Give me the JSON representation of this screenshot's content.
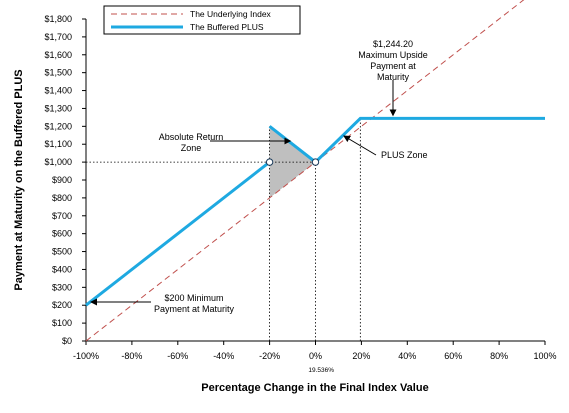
{
  "chart_data": {
    "type": "line",
    "xlabel": "Percentage Change in the Final Index Value",
    "ylabel": "Payment at Maturity on the Buffered PLUS",
    "xlim": [
      -100,
      100
    ],
    "ylim": [
      0,
      1800
    ],
    "x_ticks": [
      -100,
      -80,
      -60,
      -40,
      -20,
      0,
      20,
      40,
      60,
      80,
      100
    ],
    "x_tick_labels": [
      "-100%",
      "-80%",
      "-60%",
      "-40%",
      "-20%",
      "0%",
      "20%",
      "40%",
      "60%",
      "80%",
      "100%"
    ],
    "y_ticks": [
      0,
      100,
      200,
      300,
      400,
      500,
      600,
      700,
      800,
      900,
      1000,
      1100,
      1200,
      1300,
      1400,
      1500,
      1600,
      1700,
      1800
    ],
    "y_tick_labels": [
      "$0",
      "$100",
      "$200",
      "$300",
      "$400",
      "$500",
      "$600",
      "$700",
      "$800",
      "$900",
      "$1,000",
      "$1,100",
      "$1,200",
      "$1,300",
      "$1,400",
      "$1,500",
      "$1,600",
      "$1,700",
      "$1,800"
    ],
    "legend_position": "top-left",
    "series": [
      {
        "name": "The Underlying Index",
        "color": "#c0504d",
        "style": "dashed",
        "points": [
          [
            -100,
            0
          ],
          [
            100,
            2000
          ]
        ]
      },
      {
        "name": "The Buffered PLUS",
        "color": "#1ea9e1",
        "style": "solid",
        "segments": [
          [
            [
              -100,
              200
            ],
            [
              -20,
              1000
            ]
          ],
          [
            [
              -20,
              1200
            ],
            [
              0,
              1000
            ],
            [
              19.536,
              1244.2
            ],
            [
              100,
              1244.2
            ]
          ]
        ]
      }
    ],
    "open_markers": [
      [
        -20,
        1000
      ],
      [
        0,
        1000
      ]
    ],
    "shaded_region": [
      [
        -20,
        1200
      ],
      [
        0,
        1000
      ],
      [
        -20,
        800
      ]
    ],
    "shaded_color": "#bfbfbf",
    "guide_lines": {
      "vertical_x": [
        -20,
        0,
        19.536
      ],
      "horizontal": {
        "y": 1000,
        "x_from": -100,
        "x_to": 0
      }
    },
    "cap_label": "19.536%",
    "annotations": [
      {
        "id": "cap",
        "lines": [
          "$1,244.20",
          "Maximum Upside",
          "Payment at",
          "Maturity"
        ],
        "target": [
          19.536,
          1244.2
        ]
      },
      {
        "id": "absolute",
        "lines": [
          "Absolute Return",
          "Zone"
        ],
        "target": [
          -11,
          1100
        ]
      },
      {
        "id": "plus",
        "lines": [
          "PLUS Zone"
        ],
        "target": [
          7,
          1130
        ]
      },
      {
        "id": "min",
        "lines": [
          "$200 Minimum",
          "Payment at Maturity"
        ],
        "target": [
          -100,
          200
        ]
      }
    ]
  }
}
